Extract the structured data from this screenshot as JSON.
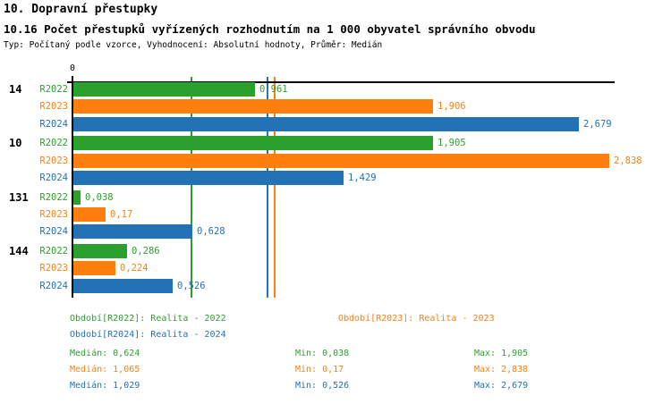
{
  "header": {
    "title": "10. Dopravní přestupky",
    "subtitle": "10.16 Počet přestupků vyřízených rozhodnutím na 1 000 obyvatel správního obvodu",
    "meta": "Typ: Počítaný podle vzorce, Vyhodnocení: Absolutní hodnoty, Průměr: Medián"
  },
  "colors": {
    "R2022": "#2ca02c",
    "R2023": "#ff7f0e",
    "R2024": "#2272b5",
    "axis": "#000000"
  },
  "chart_data": {
    "type": "bar",
    "orientation": "horizontal",
    "title": "10.16 Počet přestupků vyřízených rozhodnutím na 1 000 obyvatel správního obvodu",
    "categories": [
      "14",
      "10",
      "131",
      "144"
    ],
    "series": [
      {
        "name": "R2022",
        "values": [
          0.961,
          1.905,
          0.038,
          0.286
        ]
      },
      {
        "name": "R2023",
        "values": [
          1.906,
          2.838,
          0.17,
          0.224
        ]
      },
      {
        "name": "R2024",
        "values": [
          2.679,
          1.429,
          0.628,
          0.526
        ]
      }
    ],
    "groups": [
      {
        "label": "14",
        "bars": [
          {
            "series": "R2022",
            "display": "0,961"
          },
          {
            "series": "R2023",
            "display": "1,906"
          },
          {
            "series": "R2024",
            "display": "2,679"
          }
        ]
      },
      {
        "label": "10",
        "bars": [
          {
            "series": "R2022",
            "display": "1,905"
          },
          {
            "series": "R2023",
            "display": "2,838"
          },
          {
            "series": "R2024",
            "display": "1,429"
          }
        ]
      },
      {
        "label": "131",
        "bars": [
          {
            "series": "R2022",
            "display": "0,038"
          },
          {
            "series": "R2023",
            "display": "0,17"
          },
          {
            "series": "R2024",
            "display": "0,628"
          }
        ]
      },
      {
        "label": "144",
        "bars": [
          {
            "series": "R2022",
            "display": "0,286"
          },
          {
            "series": "R2023",
            "display": "0,224"
          },
          {
            "series": "R2024",
            "display": "0,526"
          }
        ]
      }
    ],
    "median_lines": [
      {
        "series": "R2022",
        "value": 0.624
      },
      {
        "series": "R2023",
        "value": 1.065
      },
      {
        "series": "R2024",
        "value": 1.029
      }
    ],
    "x_axis": {
      "origin_label": "0",
      "approx_max": 2.87
    },
    "grid": false,
    "legend_position": "bottom"
  },
  "legend": {
    "r2022": "Období[R2022]: Realita - 2022",
    "r2023": "Období[R2023]: Realita - 2023",
    "r2024": "Období[R2024]: Realita - 2024"
  },
  "stats": {
    "r2022": {
      "median": "Medián: 0,624",
      "min": "Min: 0,038",
      "max": "Max: 1,905"
    },
    "r2023": {
      "median": "Medián: 1,065",
      "min": "Min: 0,17",
      "max": "Max: 2,838"
    },
    "r2024": {
      "median": "Medián: 1,029",
      "min": "Min: 0,526",
      "max": "Max: 2,679"
    }
  }
}
